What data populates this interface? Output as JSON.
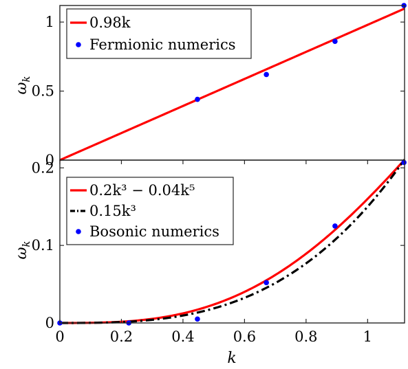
{
  "chart_data": [
    {
      "type": "line",
      "xlim": [
        0,
        1.12
      ],
      "ylim": [
        0,
        1.12
      ],
      "yticks": [
        0,
        0.5,
        1
      ],
      "yticklabels": [
        "0",
        "0.5",
        "1"
      ],
      "ylabel": "ω_k",
      "xlabel": "",
      "legend_position": "top-left",
      "series": [
        {
          "name": "0.98k",
          "kind": "line",
          "color": "#ff0000",
          "formula": "0.98*k",
          "dash": "solid"
        },
        {
          "name": "Fermionic numerics",
          "kind": "scatter",
          "color": "#0000ff",
          "x": [
            0.447,
            0.671,
            0.894,
            1.118
          ],
          "y": [
            0.44,
            0.62,
            0.86,
            1.12
          ]
        }
      ]
    },
    {
      "type": "line",
      "xlim": [
        0,
        1.12
      ],
      "ylim": [
        0,
        0.21
      ],
      "xticks": [
        0,
        0.2,
        0.4,
        0.6,
        0.8,
        1
      ],
      "xticklabels": [
        "0",
        "0.2",
        "0.4",
        "0.6",
        "0.8",
        "1"
      ],
      "yticks": [
        0,
        0.1,
        0.2
      ],
      "yticklabels": [
        "0",
        "0.1",
        "0.2"
      ],
      "xlabel": "k",
      "ylabel": "ω_k",
      "legend_position": "top-left",
      "series": [
        {
          "name": "0.2k³ − 0.04k⁵",
          "kind": "line",
          "color": "#ff0000",
          "formula": "0.2*k^3-0.04*k^5",
          "dash": "solid"
        },
        {
          "name": "0.15k³",
          "kind": "line",
          "color": "#000000",
          "formula": "0.15*k^3",
          "dash": "dashdot"
        },
        {
          "name": "Bosonic numerics",
          "kind": "scatter",
          "color": "#0000ff",
          "x": [
            0,
            0.224,
            0.447,
            0.671,
            0.894,
            1.118
          ],
          "y": [
            0,
            0,
            0.005,
            0.052,
            0.125,
            0.207
          ]
        }
      ]
    }
  ]
}
